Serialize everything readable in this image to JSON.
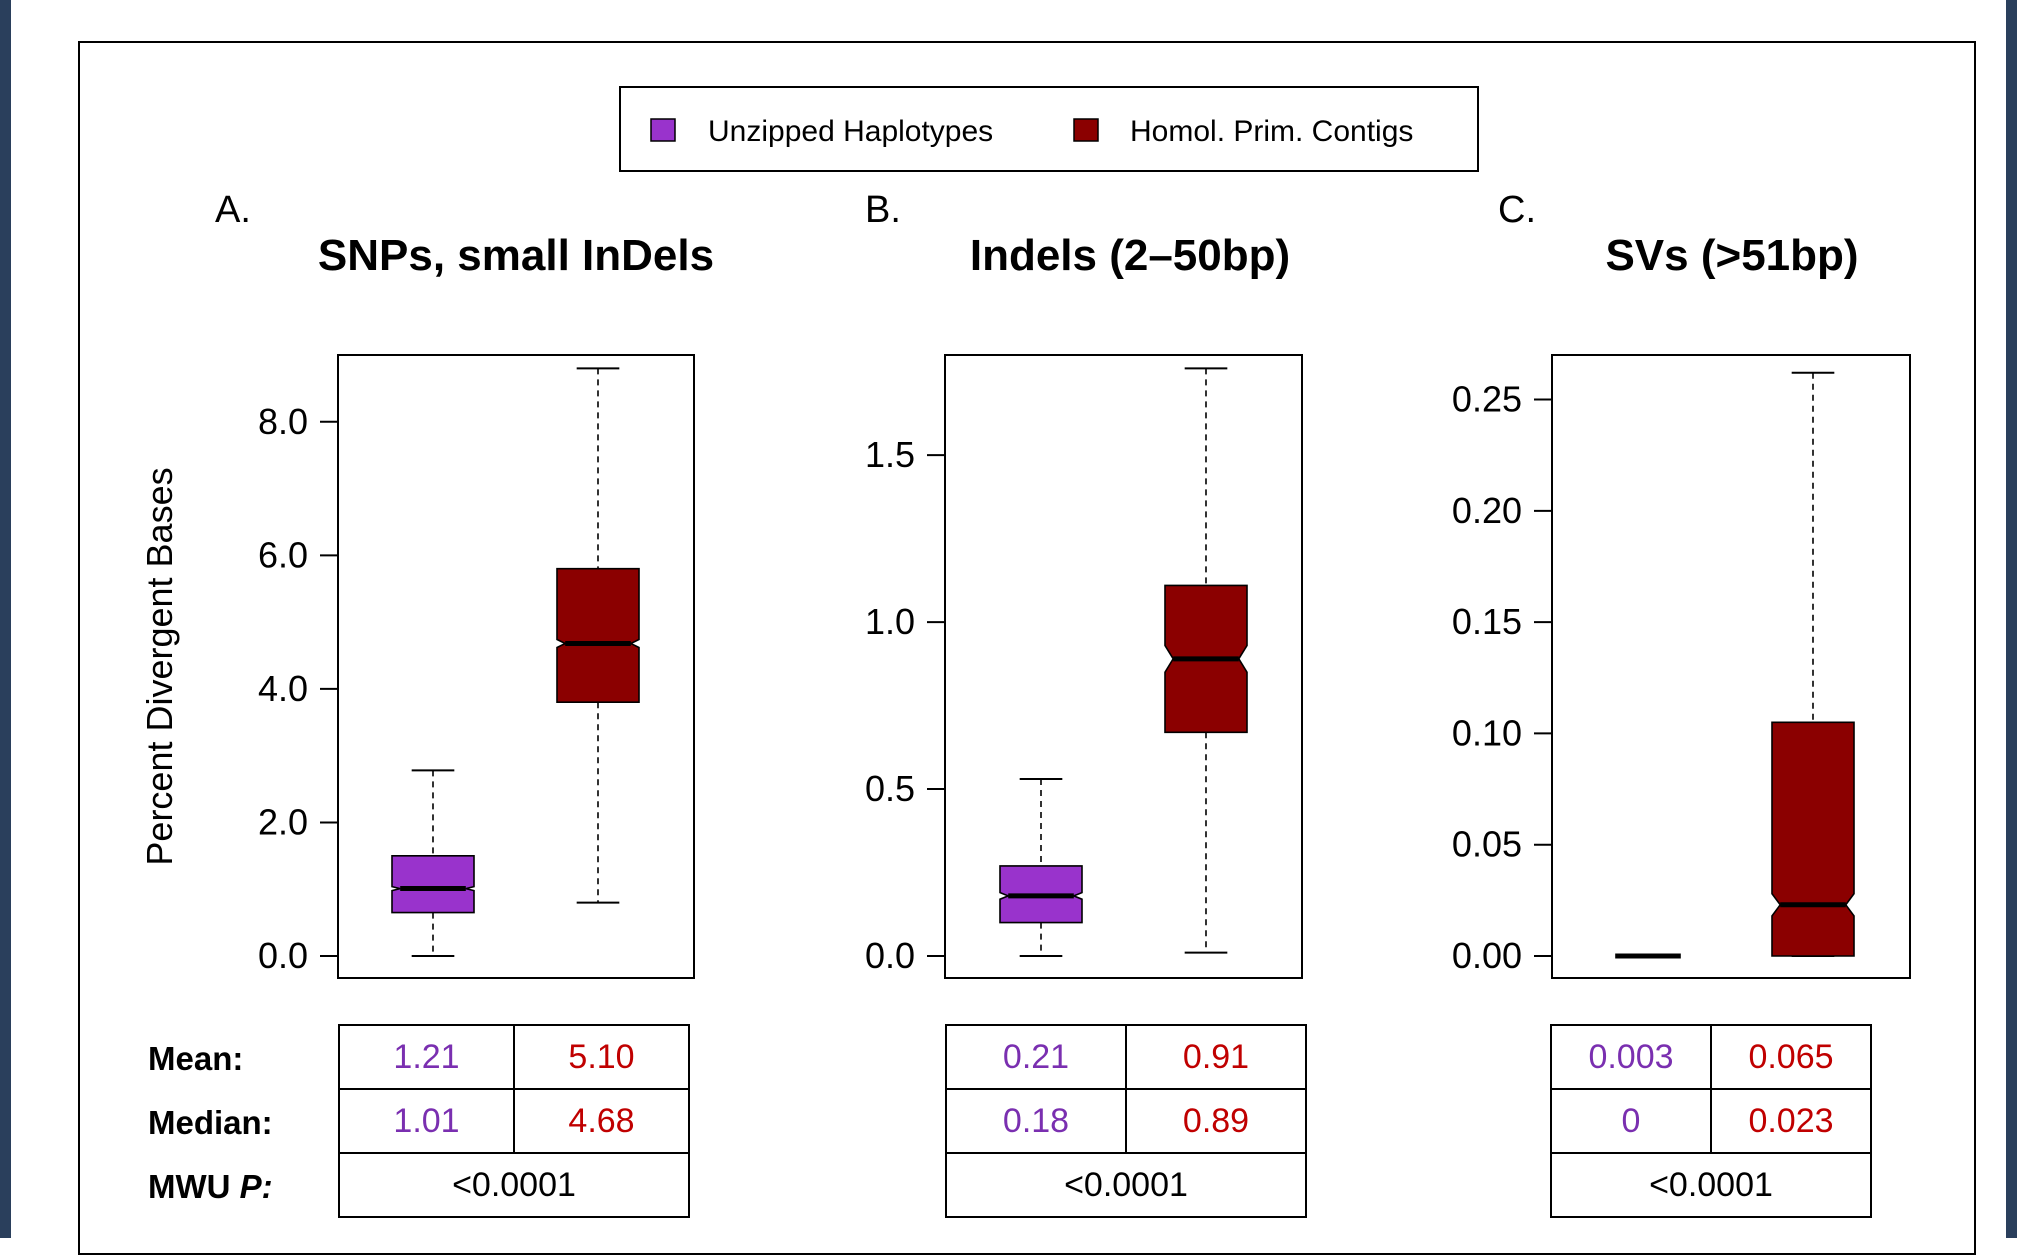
{
  "colors": {
    "unzipped": "#9933cc",
    "homol": "#8b0000",
    "unzipped_text": "#7a2fb0",
    "homol_text": "#c00000"
  },
  "legend": {
    "items": [
      {
        "label": "Unzipped Haplotypes",
        "color": "#9933cc"
      },
      {
        "label": "Homol. Prim. Contigs",
        "color": "#8b0000"
      }
    ],
    "placement": "top-center"
  },
  "stat_labels": {
    "mean": "Mean:",
    "median": "Median:",
    "mwu_prefix": "MWU ",
    "mwu_p": "P:"
  },
  "chart_data": [
    {
      "type": "boxplot",
      "letter": "A.",
      "title": "SNPs, small InDels",
      "ylabel": "Percent Divergent Bases",
      "ylim": [
        0,
        9
      ],
      "ticks": [
        "0.0",
        "2.0",
        "4.0",
        "6.0",
        "8.0"
      ],
      "tick_values": [
        0,
        2,
        4,
        6,
        8
      ],
      "series": [
        {
          "name": "Unzipped Haplotypes",
          "whisker_low": 0.0,
          "q1": 0.65,
          "median": 1.01,
          "q3": 1.5,
          "whisker_high": 2.78,
          "notch": [
            0.98,
            1.04
          ]
        },
        {
          "name": "Homol. Prim. Contigs",
          "whisker_low": 0.8,
          "q1": 3.8,
          "median": 4.68,
          "q3": 5.8,
          "whisker_high": 8.8,
          "notch": [
            4.62,
            4.74
          ]
        }
      ],
      "mean": [
        "1.21",
        "5.10"
      ],
      "median": [
        "1.01",
        "4.68"
      ],
      "mwu_p": "<0.0001"
    },
    {
      "type": "boxplot",
      "letter": "B.",
      "title": "Indels (2–50bp)",
      "ylabel": "",
      "ylim": [
        0,
        1.8
      ],
      "ticks": [
        "0.0",
        "0.5",
        "1.0",
        "1.5"
      ],
      "tick_values": [
        0,
        0.5,
        1.0,
        1.5
      ],
      "series": [
        {
          "name": "Unzipped Haplotypes",
          "whisker_low": 0.0,
          "q1": 0.1,
          "median": 0.18,
          "q3": 0.27,
          "whisker_high": 0.53,
          "notch": [
            0.17,
            0.19
          ]
        },
        {
          "name": "Homol. Prim. Contigs",
          "whisker_low": 0.01,
          "q1": 0.67,
          "median": 0.89,
          "q3": 1.11,
          "whisker_high": 1.76,
          "notch": [
            0.85,
            0.93
          ]
        }
      ],
      "mean": [
        "0.21",
        "0.91"
      ],
      "median": [
        "0.18",
        "0.89"
      ],
      "mwu_p": "<0.0001"
    },
    {
      "type": "boxplot",
      "letter": "C.",
      "title": "SVs (>51bp)",
      "ylabel": "",
      "ylim": [
        0,
        0.27
      ],
      "ticks": [
        "0.00",
        "0.05",
        "0.10",
        "0.15",
        "0.20",
        "0.25"
      ],
      "tick_values": [
        0,
        0.05,
        0.1,
        0.15,
        0.2,
        0.25
      ],
      "series": [
        {
          "name": "Unzipped Haplotypes",
          "whisker_low": 0.0,
          "q1": 0.0,
          "median": 0.0,
          "q3": 0.0,
          "whisker_high": 0.0,
          "notch": [
            0.0,
            0.0
          ]
        },
        {
          "name": "Homol. Prim. Contigs",
          "whisker_low": 0.0,
          "q1": 0.0,
          "median": 0.023,
          "q3": 0.105,
          "whisker_high": 0.262,
          "notch": [
            0.018,
            0.028
          ]
        }
      ],
      "mean": [
        "0.003",
        "0.065"
      ],
      "median": [
        "0",
        "0.023"
      ],
      "mwu_p": "<0.0001"
    }
  ]
}
